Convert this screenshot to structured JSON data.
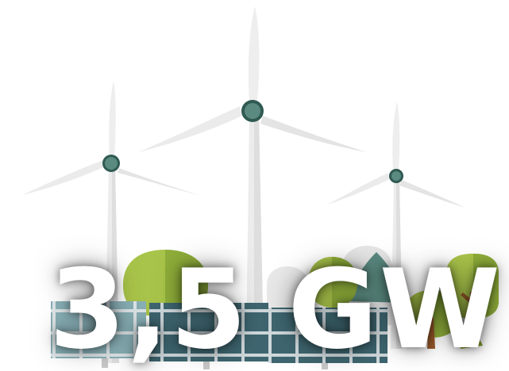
{
  "headline": {
    "text": "3,5 GW"
  },
  "palette": {
    "turbine_white": "#ececec",
    "turbine_shadow": "#d8d8d8",
    "hub": "#5b8a80",
    "hub_ring": "#2f5a52",
    "tree_light_green": "#a9c44a",
    "tree_dark_green": "#7f9d2f",
    "tree_trunk": "#9a5a2c",
    "panel_frame": "#dfe6e8",
    "panel_cell_light": "#8ab1b8",
    "panel_cell_dark": "#3f6670",
    "headline_text": "#ffffff"
  },
  "icons": {
    "turbines": "wind-turbine-icon",
    "trees": "tree-icon",
    "panels": "solar-panel-icon"
  }
}
